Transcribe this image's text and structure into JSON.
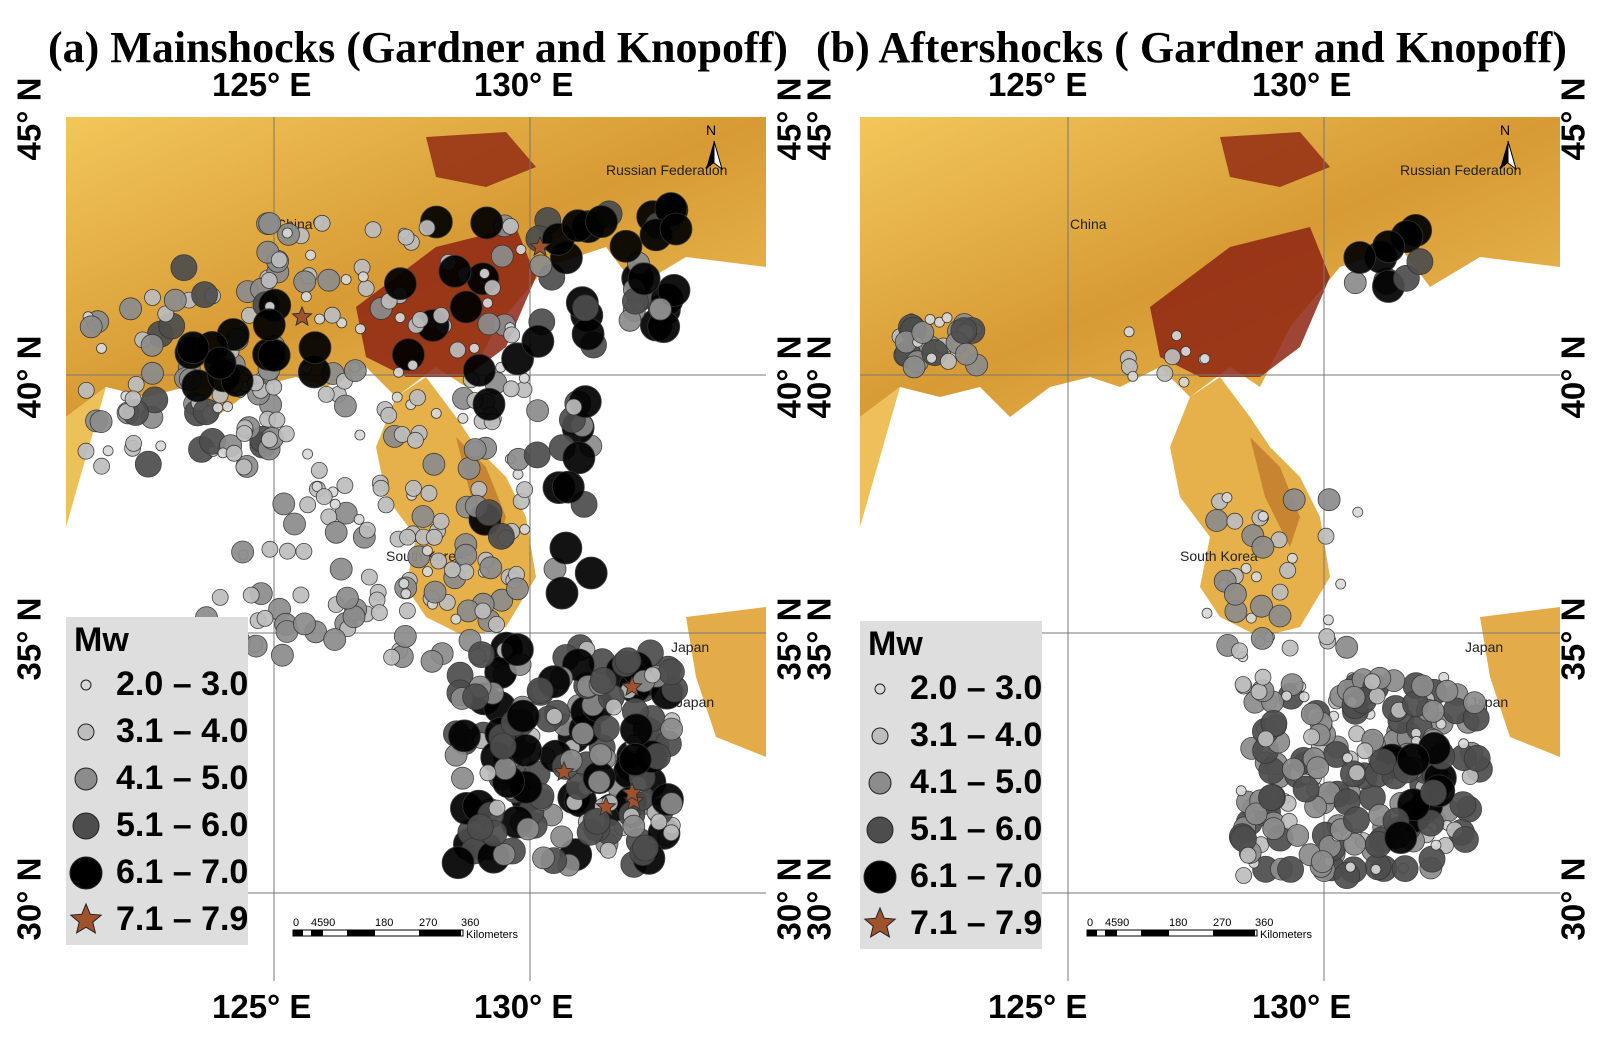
{
  "panels": [
    {
      "id": "a",
      "title": "(a) Mainshocks (Gardner and Knopoff)",
      "lon_ticks_top": [
        "125° E",
        "130° E"
      ],
      "lon_ticks_bottom": [
        "125° E",
        "130° E"
      ],
      "lat_ticks": [
        "45° N",
        "40° N",
        "35° N",
        "30° N"
      ],
      "places": {
        "china": "China",
        "russia": "Russian Federation",
        "south_korea": "South Korea",
        "japan": "Japan"
      },
      "north_arrow": "N"
    },
    {
      "id": "b",
      "title": "(b) Aftershocks ( Gardner and Knopoff)",
      "lon_ticks_top": [
        "125° E",
        "130° E"
      ],
      "lon_ticks_bottom": [
        "125° E",
        "130° E"
      ],
      "lat_ticks": [
        "45° N",
        "40° N",
        "35° N",
        "30° N"
      ],
      "places": {
        "china": "China",
        "russia": "Russian Federation",
        "south_korea": "South Korea",
        "japan": "Japan"
      },
      "north_arrow": "N"
    }
  ],
  "legend": {
    "title": "Mw",
    "classes": [
      {
        "label": "2.0 – 3.0",
        "symbol": "circle",
        "fill": "#d8d8d8"
      },
      {
        "label": "3.1 – 4.0",
        "symbol": "circle",
        "fill": "#bdbdbd"
      },
      {
        "label": "4.1 – 5.0",
        "symbol": "circle",
        "fill": "#8c8c8c"
      },
      {
        "label": "5.1 – 6.0",
        "symbol": "circle",
        "fill": "#4d4d4d"
      },
      {
        "label": "6.1 – 7.0",
        "symbol": "circle",
        "fill": "#000000"
      },
      {
        "label": "7.1 – 7.9",
        "symbol": "star",
        "fill": "#a0522d"
      }
    ]
  },
  "scalebar": {
    "ticks": [
      "0",
      "45",
      "90",
      "180",
      "270",
      "360"
    ],
    "unit": "Kilometers"
  },
  "colors": {
    "terrain_low": "#f2c75a",
    "terrain_mid": "#d4922f",
    "terrain_high": "#7a1a0c",
    "ocean": "#ffffff",
    "star": "#a0522d"
  }
}
